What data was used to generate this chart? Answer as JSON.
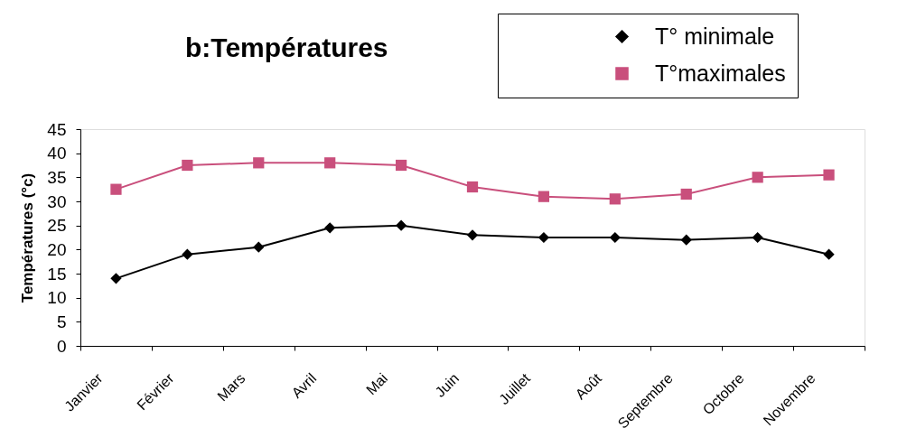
{
  "chart_data": {
    "type": "line",
    "title": "b:Températures",
    "ylabel": "Températures (°c)",
    "categories": [
      "Janvier",
      "Février",
      "Mars",
      "Avril",
      "Mai",
      "Juin",
      "Juillet",
      "Août",
      "Septembre",
      "Octobre",
      "Novembre"
    ],
    "series": [
      {
        "name": "T° minimale",
        "color": "#000000",
        "marker": "diamond",
        "values": [
          14,
          19,
          20.5,
          24.5,
          25,
          23,
          22.5,
          22.5,
          22,
          22.5,
          19
        ]
      },
      {
        "name": "T°maximales",
        "color": "#c94f7c",
        "marker": "square",
        "values": [
          32.5,
          37.5,
          38,
          38,
          37.5,
          33,
          31,
          30.5,
          31.5,
          35,
          35.5
        ]
      }
    ],
    "ylim": [
      0,
      45
    ],
    "yticks": [
      0,
      5,
      10,
      15,
      20,
      25,
      30,
      35,
      40,
      45
    ],
    "grid": false,
    "legend": "top right",
    "line_style": "solid"
  }
}
